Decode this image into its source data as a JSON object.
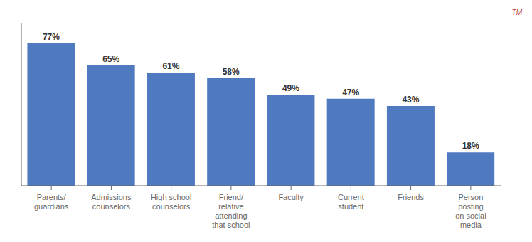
{
  "chart_data": {
    "type": "bar",
    "categories": [
      "Parents/\nguardians",
      "Admissions\ncounselors",
      "High school\ncounselors",
      "Friend/\nrelative\nattending\nthat school",
      "Faculty",
      "Current\nstudent",
      "Friends",
      "Person\nposting\non social\nmedia"
    ],
    "values": [
      77,
      65,
      61,
      58,
      49,
      47,
      43,
      18
    ],
    "value_labels": [
      "77%",
      "65%",
      "61%",
      "58%",
      "49%",
      "47%",
      "43%",
      "18%"
    ],
    "data_labels": true,
    "color": "#4f7abf",
    "ylim": [
      0,
      88
    ],
    "yticks": [],
    "tick_labels": "x",
    "grid": false,
    "annotations": [
      {
        "text": "TM",
        "color": "#c0392b"
      }
    ]
  }
}
